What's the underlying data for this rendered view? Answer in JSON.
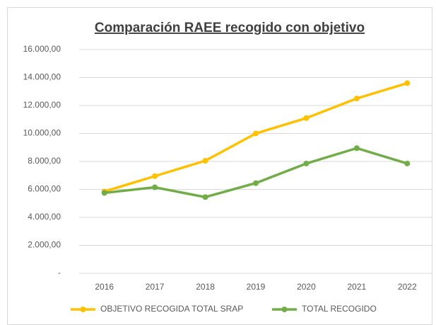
{
  "chart_data": {
    "type": "line",
    "title": "Comparación RAEE recogido con objetivo",
    "categories": [
      "2016",
      "2017",
      "2018",
      "2019",
      "2020",
      "2021",
      "2022"
    ],
    "series": [
      {
        "name": "OBJETIVO RECOGIDA TOTAL SRAP",
        "color": "#ffc000",
        "values": [
          5850,
          6950,
          8050,
          10000,
          11100,
          12500,
          13600
        ]
      },
      {
        "name": "TOTAL RECOGIDO",
        "color": "#70ad47",
        "values": [
          5750,
          6150,
          5450,
          6450,
          7850,
          8950,
          7850
        ]
      }
    ],
    "ylim": [
      0,
      16000
    ],
    "yticks": [
      {
        "value": 0,
        "label": "-"
      },
      {
        "value": 2000,
        "label": "2.000,00"
      },
      {
        "value": 4000,
        "label": "4.000,00"
      },
      {
        "value": 6000,
        "label": "6.000,00"
      },
      {
        "value": 8000,
        "label": "8.000,00"
      },
      {
        "value": 10000,
        "label": "10.000,00"
      },
      {
        "value": 12000,
        "label": "12.000,00"
      },
      {
        "value": 14000,
        "label": "14.000,00"
      },
      {
        "value": 16000,
        "label": "16.000,00"
      }
    ],
    "grid": true,
    "legend": "bottom"
  }
}
